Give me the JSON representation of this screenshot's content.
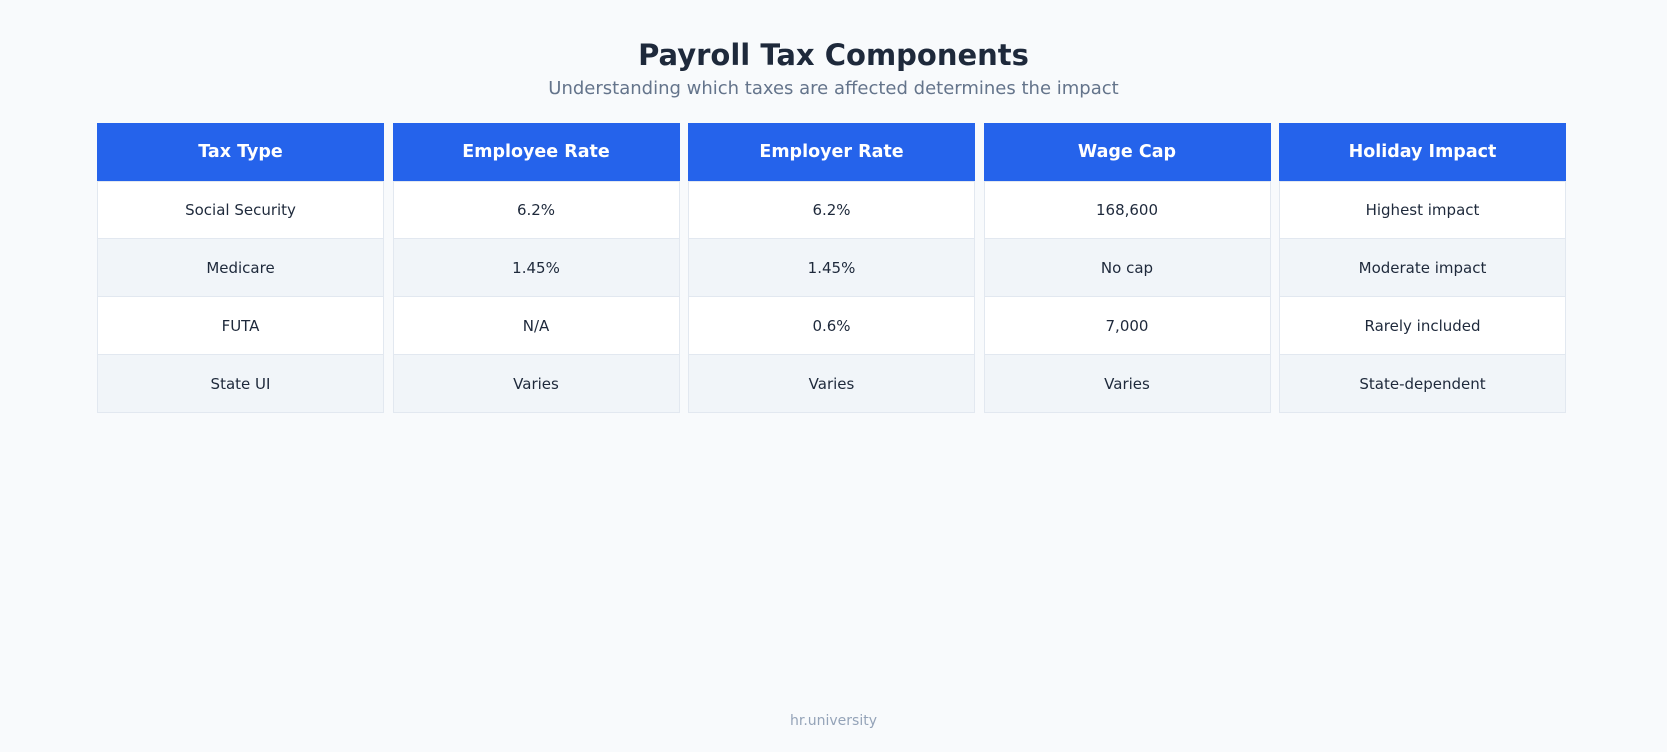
{
  "title": "Payroll Tax Components",
  "subtitle": "Understanding which taxes are affected determines the impact",
  "table": {
    "headers": [
      "Tax Type",
      "Employee Rate",
      "Employer Rate",
      "Wage Cap",
      "Holiday Impact"
    ],
    "rows": [
      [
        "Social Security",
        "6.2%",
        "6.2%",
        "168,600",
        "Highest impact"
      ],
      [
        "Medicare",
        "1.45%",
        "1.45%",
        "No cap",
        "Moderate impact"
      ],
      [
        "FUTA",
        "N/A",
        "0.6%",
        "7,000",
        "Rarely included"
      ],
      [
        "State UI",
        "Varies",
        "Varies",
        "Varies",
        "State-dependent"
      ]
    ]
  },
  "footer": "hr.university",
  "colors": {
    "header_bg": "#2563eb",
    "row_alt_bg": "#f1f5f9",
    "title": "#1e293b",
    "subtitle": "#64748b"
  }
}
